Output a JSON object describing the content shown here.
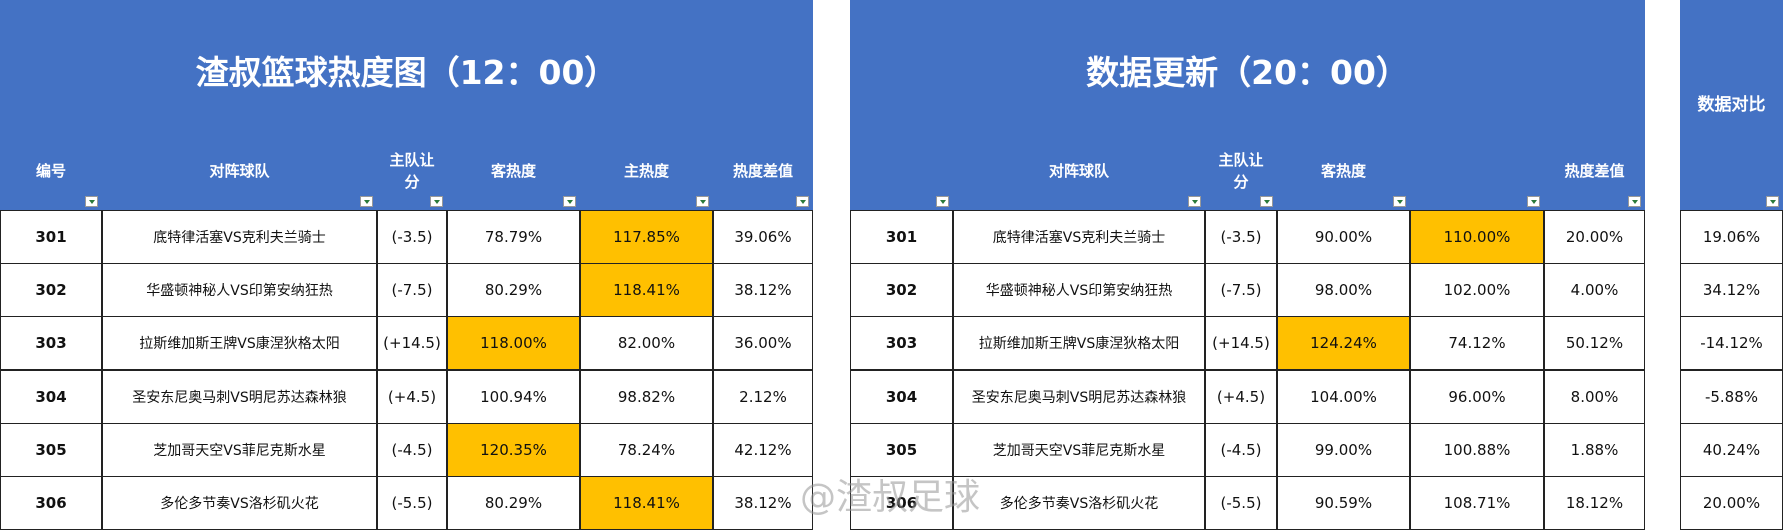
{
  "left": {
    "title": "渣叔篮球热度图（12：00）",
    "headers": [
      "编号",
      "对阵球队",
      "主队让分",
      "客热度",
      "主热度",
      "热度差值"
    ],
    "rows": [
      [
        "301",
        "底特律活塞VS克利夫兰骑士",
        "(-3.5)",
        "78.79%",
        "117.85%",
        "39.06%"
      ],
      [
        "302",
        "华盛顿神秘人VS印第安纳狂热",
        "(-7.5)",
        "80.29%",
        "118.41%",
        "38.12%"
      ],
      [
        "303",
        "拉斯维加斯王牌VS康涅狄格太阳",
        "(+14.5)",
        "118.00%",
        "82.00%",
        "36.00%"
      ],
      [
        "304",
        "圣安东尼奥马刺VS明尼苏达森林狼",
        "(+4.5)",
        "100.94%",
        "98.82%",
        "2.12%"
      ],
      [
        "305",
        "芝加哥天空VS菲尼克斯水星",
        "(-4.5)",
        "120.35%",
        "78.24%",
        "42.12%"
      ],
      [
        "306",
        "多伦多节奏VS洛杉矶火花",
        "(-5.5)",
        "80.29%",
        "118.41%",
        "38.12%"
      ]
    ]
  },
  "update": {
    "title": "数据更新（20：00）",
    "headers": [
      null,
      "对阵球队",
      "主队让分",
      "客热度",
      null,
      "热度差值"
    ],
    "rows": [
      [
        "301",
        "底特律活塞VS克利夫兰骑士",
        "(-3.5)",
        "90.00%",
        "110.00%",
        "20.00%"
      ],
      [
        "302",
        "华盛顿神秘人VS印第安纳狂热",
        "(-7.5)",
        "98.00%",
        "102.00%",
        "4.00%"
      ],
      [
        "303",
        "拉斯维加斯王牌VS康涅狄格太阳",
        "(+14.5)",
        "124.24%",
        "74.12%",
        "50.12%"
      ],
      [
        "304",
        "圣安东尼奥马刺VS明尼苏达森林狼",
        "(+4.5)",
        "104.00%",
        "96.00%",
        "8.00%"
      ],
      [
        "305",
        "芝加哥天空VS菲尼克斯水星",
        "(-4.5)",
        "99.00%",
        "100.88%",
        "1.88%"
      ],
      [
        "306",
        "多伦多节奏VS洛杉矶火花",
        "(-5.5)",
        "90.59%",
        "108.71%",
        "18.12%"
      ]
    ]
  },
  "compare": {
    "header": "数据对比",
    "values": [
      "19.06%",
      "34.12%",
      "-14.12%",
      "-5.88%",
      "40.24%",
      "20.00%"
    ]
  },
  "watermark": "@渣叔足球"
}
